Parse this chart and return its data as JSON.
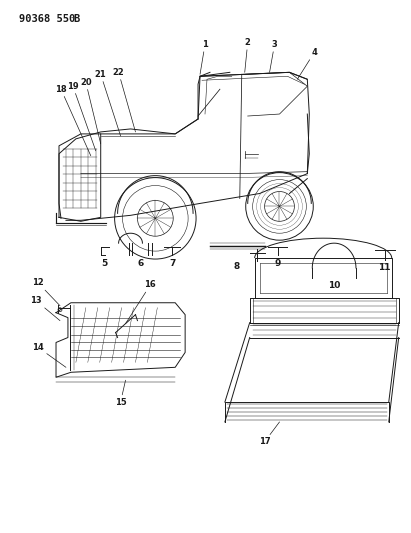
{
  "title_part1": "90368 550",
  "title_part2": "B",
  "bg_color": "#ffffff",
  "line_color": "#1a1a1a",
  "fig_width": 4.11,
  "fig_height": 5.33,
  "dpi": 100
}
